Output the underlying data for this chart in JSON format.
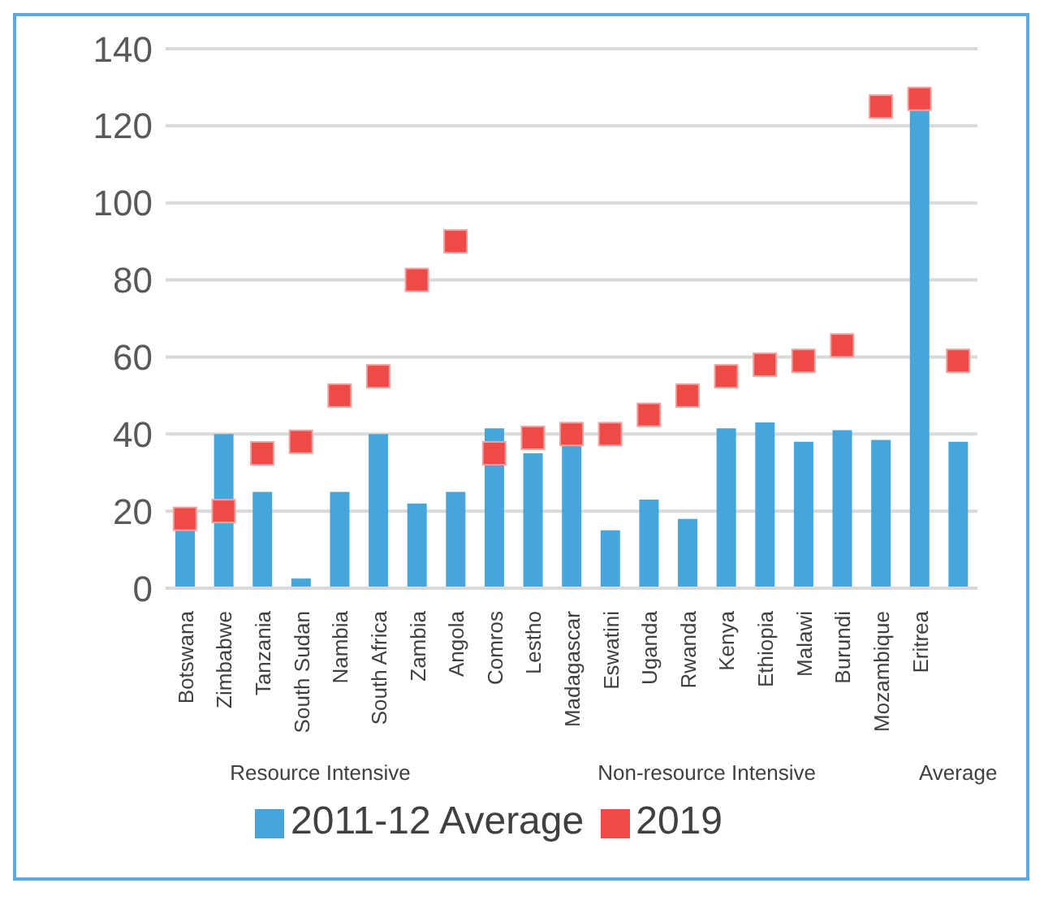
{
  "chart_data": {
    "type": "bar",
    "categories": [
      "Botswana",
      "Zimbabwe",
      "Tanzania",
      "South Sudan",
      "Nambia",
      "South Africa",
      "Zambia",
      "Angola",
      "Comros",
      "Lestho",
      "Madagascar",
      "Eswatini",
      "Uganda",
      "Rwanda",
      "Kenya",
      "Ethiopia",
      "Malawi",
      "Burundi",
      "Mozambique",
      "Eritrea",
      null
    ],
    "series": [
      {
        "name": "2011-12 Average",
        "type": "bar",
        "color": "#46a6dc",
        "values": [
          15,
          40,
          25,
          2.5,
          25,
          40,
          22,
          25,
          41.5,
          35,
          37,
          15,
          23,
          18,
          41.5,
          43,
          38,
          41,
          38.5,
          124,
          38
        ]
      },
      {
        "name": "2019",
        "type": "scatter",
        "color": "#ee4b47",
        "values": [
          18,
          20,
          35,
          38,
          50,
          55,
          80,
          90,
          35,
          39,
          40,
          40,
          45,
          50,
          55,
          58,
          59,
          63,
          125,
          127,
          59
        ]
      }
    ],
    "ylim": [
      0,
      140
    ],
    "yticks": [
      0,
      20,
      40,
      60,
      80,
      100,
      120,
      140
    ],
    "grid": "y",
    "legend": "bottom",
    "marker": "square",
    "annotations": [
      "Resource Intensive",
      "Non-resource Intensive",
      "Average"
    ]
  }
}
